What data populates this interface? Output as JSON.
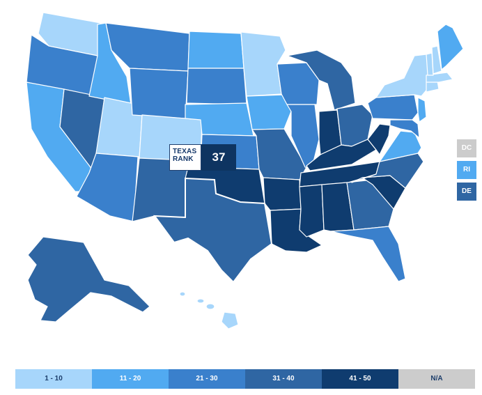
{
  "callout": {
    "label_line1": "TEXAS",
    "label_line2": "RANK",
    "value": "37"
  },
  "colors": {
    "bin1": "#a7d6fb",
    "bin2": "#51aaf1",
    "bin3": "#3a80cc",
    "bin4": "#2f66a3",
    "bin5": "#0f3c6f",
    "na": "#cccccc"
  },
  "side_states": [
    {
      "label": "DC",
      "bin": "na"
    },
    {
      "label": "RI",
      "bin": "bin2"
    },
    {
      "label": "DE",
      "bin": "bin4"
    }
  ],
  "legend": [
    {
      "label": "1 - 10",
      "bin": "bin1"
    },
    {
      "label": "11 - 20",
      "bin": "bin2"
    },
    {
      "label": "21 - 30",
      "bin": "bin3"
    },
    {
      "label": "31 - 40",
      "bin": "bin4"
    },
    {
      "label": "41 - 50",
      "bin": "bin5"
    },
    {
      "label": "N/A",
      "bin": "na"
    }
  ],
  "states": [
    {
      "id": "WA",
      "bin": "bin1"
    },
    {
      "id": "OR",
      "bin": "bin3"
    },
    {
      "id": "CA",
      "bin": "bin2"
    },
    {
      "id": "ID",
      "bin": "bin2"
    },
    {
      "id": "NV",
      "bin": "bin4"
    },
    {
      "id": "UT",
      "bin": "bin1"
    },
    {
      "id": "AZ",
      "bin": "bin3"
    },
    {
      "id": "MT",
      "bin": "bin3"
    },
    {
      "id": "WY",
      "bin": "bin3"
    },
    {
      "id": "CO",
      "bin": "bin1"
    },
    {
      "id": "NM",
      "bin": "bin4"
    },
    {
      "id": "ND",
      "bin": "bin2"
    },
    {
      "id": "SD",
      "bin": "bin3"
    },
    {
      "id": "NE",
      "bin": "bin2"
    },
    {
      "id": "KS",
      "bin": "bin3"
    },
    {
      "id": "OK",
      "bin": "bin5"
    },
    {
      "id": "TX",
      "bin": "bin4"
    },
    {
      "id": "MN",
      "bin": "bin1"
    },
    {
      "id": "IA",
      "bin": "bin2"
    },
    {
      "id": "MO",
      "bin": "bin4"
    },
    {
      "id": "AR",
      "bin": "bin5"
    },
    {
      "id": "LA",
      "bin": "bin5"
    },
    {
      "id": "WI",
      "bin": "bin3"
    },
    {
      "id": "IL",
      "bin": "bin3"
    },
    {
      "id": "MI",
      "bin": "bin4"
    },
    {
      "id": "IN",
      "bin": "bin5"
    },
    {
      "id": "OH",
      "bin": "bin4"
    },
    {
      "id": "KY",
      "bin": "bin5"
    },
    {
      "id": "TN",
      "bin": "bin5"
    },
    {
      "id": "MS",
      "bin": "bin5"
    },
    {
      "id": "AL",
      "bin": "bin5"
    },
    {
      "id": "GA",
      "bin": "bin4"
    },
    {
      "id": "FL",
      "bin": "bin3"
    },
    {
      "id": "SC",
      "bin": "bin5"
    },
    {
      "id": "NC",
      "bin": "bin4"
    },
    {
      "id": "VA",
      "bin": "bin2"
    },
    {
      "id": "WV",
      "bin": "bin5"
    },
    {
      "id": "PA",
      "bin": "bin3"
    },
    {
      "id": "NY",
      "bin": "bin1"
    },
    {
      "id": "MD",
      "bin": "bin3"
    },
    {
      "id": "NJ",
      "bin": "bin2"
    },
    {
      "id": "CT",
      "bin": "bin1"
    },
    {
      "id": "MA",
      "bin": "bin1"
    },
    {
      "id": "VT",
      "bin": "bin1"
    },
    {
      "id": "NH",
      "bin": "bin1"
    },
    {
      "id": "ME",
      "bin": "bin2"
    },
    {
      "id": "AK",
      "bin": "bin4"
    },
    {
      "id": "HI",
      "bin": "bin1"
    }
  ]
}
